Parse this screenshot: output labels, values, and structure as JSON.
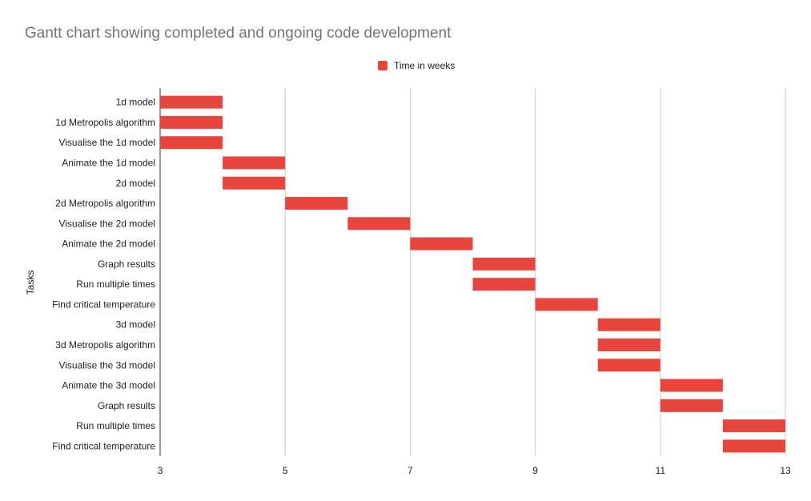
{
  "chart_data": {
    "type": "bar",
    "subtype": "gantt",
    "title": "Gantt chart showing completed and ongoing code development",
    "xlabel": "",
    "ylabel": "Tasks",
    "xlim": [
      3,
      13
    ],
    "xticks": [
      3,
      5,
      7,
      9,
      11,
      13
    ],
    "grid": true,
    "legend_position": "top",
    "bar_color": "#e8453c",
    "series": [
      {
        "name": "Time in weeks",
        "tasks": [
          {
            "task": "1d model",
            "start": 3,
            "end": 4
          },
          {
            "task": "1d Metropolis algorithm",
            "start": 3,
            "end": 4
          },
          {
            "task": "Visualise the 1d model",
            "start": 3,
            "end": 4
          },
          {
            "task": "Animate the 1d model",
            "start": 4,
            "end": 5
          },
          {
            "task": "2d model",
            "start": 4,
            "end": 5
          },
          {
            "task": "2d Metropolis algorithm",
            "start": 5,
            "end": 6
          },
          {
            "task": "Visualise the 2d model",
            "start": 6,
            "end": 7
          },
          {
            "task": "Animate the 2d model",
            "start": 7,
            "end": 8
          },
          {
            "task": "Graph results",
            "start": 8,
            "end": 9
          },
          {
            "task": "Run multiple times",
            "start": 8,
            "end": 9
          },
          {
            "task": "Find critical temperature",
            "start": 9,
            "end": 10
          },
          {
            "task": "3d model",
            "start": 10,
            "end": 11
          },
          {
            "task": "3d Metropolis algorithm",
            "start": 10,
            "end": 11
          },
          {
            "task": "Visualise the 3d model",
            "start": 10,
            "end": 11
          },
          {
            "task": "Animate the 3d model",
            "start": 11,
            "end": 12
          },
          {
            "task": "Graph results",
            "start": 11,
            "end": 12
          },
          {
            "task": "Run multiple times",
            "start": 12,
            "end": 13
          },
          {
            "task": "Find critical temperature",
            "start": 12,
            "end": 13
          }
        ]
      }
    ]
  }
}
